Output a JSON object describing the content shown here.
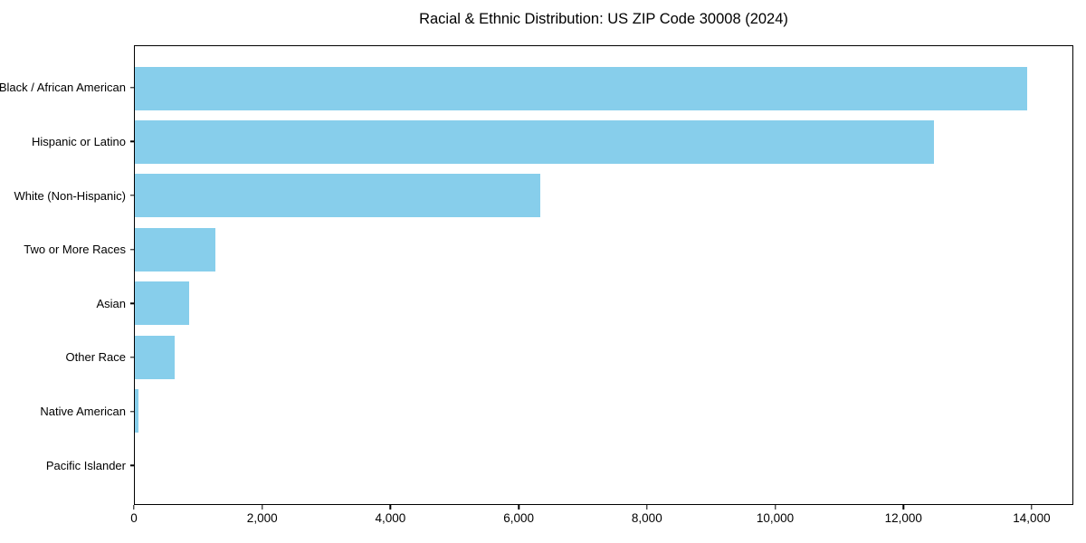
{
  "chart_data": {
    "type": "bar",
    "orientation": "horizontal",
    "title": "Racial & Ethnic Distribution: US ZIP Code 30008 (2024)",
    "categories": [
      "Black / African American",
      "Hispanic or Latino",
      "White (Non-Hispanic)",
      "Two or More Races",
      "Asian",
      "Other Race",
      "Native American",
      "Pacific Islander"
    ],
    "values": [
      13950,
      12480,
      6340,
      1260,
      850,
      620,
      60,
      0
    ],
    "xlabel": "",
    "ylabel": "",
    "xlim": [
      0,
      14650
    ],
    "x_ticks": [
      0,
      2000,
      4000,
      6000,
      8000,
      10000,
      12000,
      14000
    ],
    "x_tick_labels": [
      "0",
      "2,000",
      "4,000",
      "6,000",
      "8,000",
      "10,000",
      "12,000",
      "14,000"
    ],
    "bar_color": "#87CEEB",
    "grid": false,
    "legend_position": "none",
    "background_color": "#FFFFFF"
  }
}
